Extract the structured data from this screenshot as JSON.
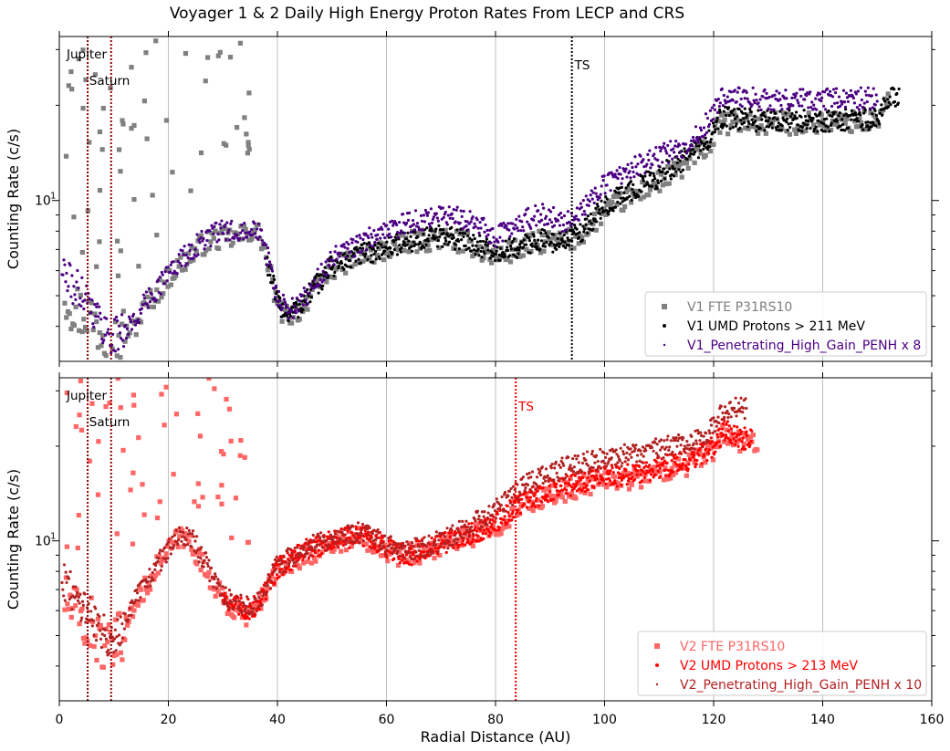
{
  "chart_data": {
    "type": "scatter",
    "title": "Voyager 1 & 2 Daily High Energy Proton Rates From LECP and CRS",
    "xlabel": "Radial Distance (AU)",
    "xlim": [
      0,
      160
    ],
    "xticks": [
      0,
      20,
      40,
      60,
      80,
      100,
      120,
      140,
      160
    ],
    "xtick_labels": [
      "0",
      "20",
      "40",
      "60",
      "80",
      "100",
      "120",
      "140",
      "160"
    ],
    "panels": [
      {
        "id": "v1",
        "ylabel": "Counting Rate (c/s)",
        "yscale": "log",
        "ylim": [
          3.1,
          33
        ],
        "yticks": [
          10
        ],
        "ytick_label": "10",
        "ytick_exp": "1",
        "legend_loc": "lower right",
        "markers": [
          {
            "label": "Jupiter",
            "x": 5.2,
            "color": "#8b0000"
          },
          {
            "label": "Saturn",
            "x": 9.5,
            "color": "#8b0000"
          },
          {
            "label": "TS",
            "x": 94,
            "color": "#000000"
          }
        ],
        "series": [
          {
            "name": "V1 FTE P31RS10",
            "color": "#808080",
            "marker": "square",
            "x": [
              1,
              2,
              3,
              4,
              5,
              6,
              7,
              8,
              9,
              10,
              12,
              14,
              16,
              18,
              20,
              22,
              24,
              26,
              28,
              30,
              32,
              34,
              36,
              37,
              38,
              40,
              42,
              44,
              46,
              48,
              50,
              55,
              60,
              65,
              70,
              75,
              80,
              84,
              88,
              92,
              95,
              98,
              100,
              105,
              110,
              115,
              118,
              120,
              121,
              125,
              130,
              140,
              150,
              152
            ],
            "y": [
              5.2,
              4.8,
              4.6,
              4.4,
              4.5,
              4.2,
              4.0,
              3.9,
              3.7,
              3.6,
              3.8,
              4.0,
              4.7,
              5.1,
              5.7,
              6.2,
              6.7,
              7.2,
              7.5,
              7.6,
              7.6,
              7.8,
              8.1,
              7.6,
              6.5,
              4.6,
              4.3,
              4.5,
              5.0,
              5.5,
              6.1,
              6.6,
              7.0,
              7.4,
              7.6,
              7.3,
              6.6,
              7.0,
              7.4,
              7.4,
              7.6,
              8.5,
              9.2,
              10.3,
              11.4,
              12.9,
              14.4,
              15.5,
              17.5,
              17.6,
              17.5,
              17.6,
              17.8,
              21.0
            ]
          },
          {
            "name": "V1 UMD Protons > 211 MeV",
            "color": "#000000",
            "marker": "dot",
            "x": [
              38,
              40,
              42,
              44,
              46,
              48,
              50,
              55,
              60,
              65,
              70,
              75,
              80,
              84,
              88,
              92,
              95,
              98,
              100,
              105,
              110,
              115,
              118,
              120,
              121,
              125,
              130,
              140,
              150,
              152,
              154
            ],
            "y": [
              6.5,
              4.7,
              4.4,
              4.6,
              5.1,
              5.6,
              6.2,
              6.7,
              7.1,
              7.5,
              7.7,
              7.5,
              6.8,
              7.1,
              7.5,
              7.4,
              7.8,
              8.7,
              9.6,
              10.8,
              11.9,
              13.6,
              15.2,
              16.3,
              18.3,
              18.1,
              17.8,
              17.9,
              18.1,
              20.5,
              22.0
            ]
          },
          {
            "name": "V1_Penetrating_High_Gain_PENH x 8",
            "color": "#4b0082",
            "marker": "dot",
            "x": [
              0.5,
              1,
              2,
              3,
              4,
              5,
              6,
              7,
              8,
              9,
              10,
              12,
              14,
              16,
              18,
              20,
              22,
              24,
              26,
              28,
              30,
              32,
              34,
              36,
              37,
              38,
              40,
              42,
              44,
              46,
              48,
              50,
              55,
              60,
              65,
              70,
              75,
              80,
              84,
              88,
              92,
              95,
              98,
              100,
              105,
              110,
              115,
              118,
              120,
              121,
              125,
              130,
              140,
              150
            ],
            "y": [
              6.2,
              5.8,
              5.5,
              5.2,
              5.3,
              5.0,
              4.6,
              4.3,
              4.0,
              3.8,
              3.7,
              3.9,
              4.2,
              4.8,
              5.3,
              5.9,
              6.4,
              6.9,
              7.4,
              7.8,
              8.0,
              8.0,
              8.2,
              8.3,
              7.9,
              6.8,
              4.8,
              4.5,
              4.7,
              5.2,
              5.8,
              6.5,
              7.3,
              8.0,
              8.6,
              9.0,
              8.7,
              7.7,
              8.4,
              9.1,
              8.6,
              9.0,
              10.3,
              11.3,
              12.7,
              13.8,
              15.0,
              17.0,
              18.5,
              21.0,
              21.0,
              20.9,
              20.9,
              21.0
            ]
          }
        ]
      },
      {
        "id": "v2",
        "ylabel": "Counting Rate (c/s)",
        "yscale": "log",
        "ylim": [
          3.1,
          33
        ],
        "yticks": [
          10
        ],
        "ytick_label": "10",
        "ytick_exp": "1",
        "legend_loc": "lower right",
        "markers": [
          {
            "label": "Jupiter",
            "x": 5.2,
            "color": "#8b0000"
          },
          {
            "label": "Saturn",
            "x": 9.5,
            "color": "#8b0000"
          },
          {
            "label": "TS",
            "x": 83.7,
            "color": "#ff0000"
          }
        ],
        "series": [
          {
            "name": "V2 FTE P31RS10",
            "color": "#ff6666",
            "marker": "square",
            "x": [
              1,
              2,
              3,
              4,
              5,
              6,
              7,
              8,
              9,
              10,
              12,
              14,
              16,
              18,
              20,
              22,
              24,
              26,
              28,
              30,
              32,
              34,
              36,
              40,
              45,
              50,
              55,
              57,
              60,
              62,
              66,
              70,
              75,
              80,
              85,
              90,
              95,
              100,
              105,
              110,
              115,
              118,
              120,
              122,
              125,
              128
            ],
            "y": [
              6.6,
              6.2,
              5.9,
              5.6,
              5.3,
              5.4,
              5.0,
              4.6,
              4.4,
              4.5,
              5.2,
              6.3,
              7.2,
              8.3,
              9.3,
              10.3,
              10.0,
              8.5,
              7.5,
              6.5,
              6.0,
              5.8,
              6.0,
              8.0,
              9.0,
              9.8,
              10.2,
              10.0,
              9.4,
              9.0,
              9.2,
              9.5,
              10.3,
              11.0,
              13.0,
              14.0,
              14.8,
              15.6,
              15.8,
              16.5,
              17.4,
              18.4,
              19.5,
              22.0,
              20.5,
              21.0
            ]
          },
          {
            "name": "V2 UMD Protons > 213 MeV",
            "color": "#ff0000",
            "marker": "dot",
            "x": [
              30,
              32,
              34,
              36,
              38,
              40,
              45,
              50,
              55,
              57,
              60,
              62,
              64,
              66,
              70,
              75,
              80,
              85,
              90,
              95,
              100,
              105,
              110,
              115,
              118,
              120,
              122,
              125,
              127
            ],
            "y": [
              6.7,
              6.3,
              6.0,
              6.2,
              7.0,
              8.2,
              9.3,
              10.0,
              10.4,
              10.2,
              9.6,
              9.3,
              9.0,
              9.3,
              9.7,
              10.5,
              11.3,
              13.4,
              14.4,
              15.2,
              16.0,
              16.3,
              17.0,
              18.0,
              19.0,
              20.0,
              22.5,
              21.0,
              21.5
            ]
          },
          {
            "name": "V2_Penetrating_High_Gain_PENH x 10",
            "color": "#b22222",
            "marker": "dot",
            "x": [
              0.5,
              1,
              2,
              3,
              4,
              5,
              6,
              7,
              8,
              9,
              10,
              12,
              14,
              16,
              18,
              20,
              22,
              24,
              26,
              28,
              30,
              32,
              34,
              36,
              38,
              40,
              45,
              50,
              55,
              57,
              60,
              62,
              64,
              66,
              70,
              75,
              80,
              85,
              90,
              95,
              100,
              105,
              110,
              115,
              118,
              120,
              122,
              126
            ],
            "y": [
              7.8,
              7.4,
              7.0,
              6.6,
              6.4,
              6.2,
              5.8,
              5.4,
              5.1,
              4.9,
              5.0,
              5.6,
              6.5,
              7.4,
              8.4,
              9.4,
              10.2,
              10.5,
              9.0,
              7.8,
              6.8,
              6.4,
              6.1,
              6.3,
              7.1,
              8.3,
              9.4,
              10.2,
              10.6,
              10.3,
              9.7,
              9.4,
              9.2,
              9.5,
              10.0,
              11.0,
              12.5,
              14.8,
              16.5,
              17.5,
              18.2,
              18.9,
              19.6,
              20.5,
              21.5,
              23.0,
              26.0,
              26.5
            ]
          }
        ]
      }
    ]
  }
}
